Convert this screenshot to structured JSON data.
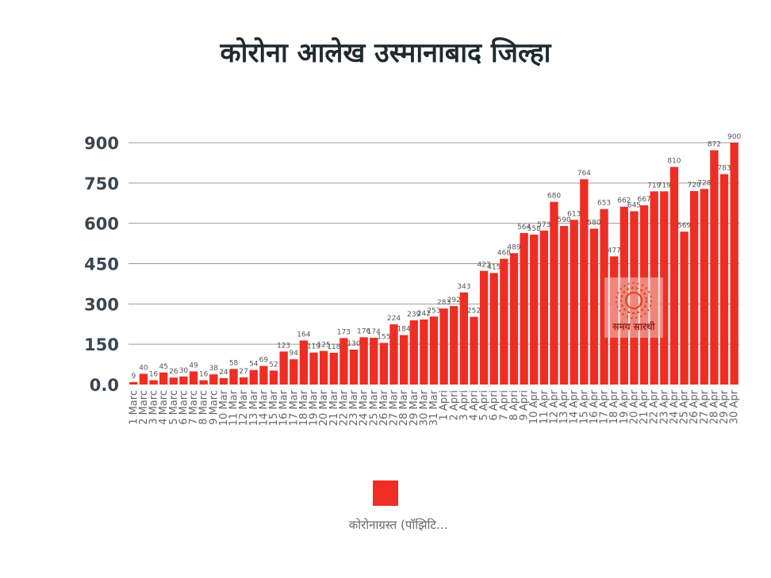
{
  "chart_data": {
    "type": "bar",
    "title": "कोरोना आलेख उस्मानाबाद जिल्हा",
    "y_ticks": [
      "0.0",
      "150",
      "300",
      "450",
      "600",
      "750",
      "900"
    ],
    "ylim": [
      0,
      900
    ],
    "grid": true,
    "legend_position": "bottom",
    "series": [
      {
        "name": "कोरोनाग्रस्त (पॉझिटि...",
        "color": "#ee2e24",
        "values": [
          9,
          40,
          16,
          45,
          26,
          30,
          49,
          16,
          38,
          24,
          58,
          27,
          54,
          69,
          52,
          123,
          94,
          164,
          119,
          125,
          118,
          173,
          130,
          176,
          174,
          155,
          224,
          184,
          239,
          242,
          253,
          283,
          292,
          343,
          252,
          423,
          415,
          468,
          489,
          564,
          558,
          573,
          680,
          590,
          613,
          764,
          580,
          653,
          477,
          662,
          645,
          667,
          719,
          719,
          810,
          569,
          720,
          728,
          872,
          783,
          900
        ]
      }
    ],
    "categories": [
      "1 Marc",
      "2 Marc",
      "3 Marc",
      "4 Marc",
      "5 Marc",
      "6 Marc",
      "7 Marc",
      "8 Marc",
      "9 Marc",
      "10 Mar",
      "11 Mar",
      "12 Mar",
      "13 Mar",
      "14 Mar",
      "15 Mar",
      "16 Mar",
      "17 Mar",
      "18 Mar",
      "19 Mar",
      "20 Mar",
      "21 Mar",
      "22 Mar",
      "23 Mar",
      "24 Mar",
      "25 Mar",
      "26 Mar",
      "27 Mar",
      "28 Mar",
      "29 Mar",
      "30 Mar",
      "31 Mar",
      "1 Apri",
      "2 Apri",
      "3 Apri",
      "4 Apri",
      "5 Apri",
      "6 Apri",
      "7 Apri",
      "8 Apri",
      "9 Apri",
      "10 Apr",
      "11 Apr",
      "12 Apr",
      "13 Apr",
      "14 Apr",
      "15 Apr",
      "16 Apr",
      "17 Apr",
      "18 Apr",
      "19 Apr",
      "20 Apr",
      "21 Apr",
      "22 Apr",
      "23 Apr",
      "24 Apr",
      "25 Apr",
      "26 Apr",
      "27 Apr",
      "28 Apr",
      "29 Apr",
      "30 Apr"
    ]
  },
  "watermark": {
    "text": "समय सारथी"
  },
  "colors": {
    "bar": "#ee2e24",
    "grid": "#9a9a9a",
    "text": "#333333",
    "label": "#555555"
  }
}
